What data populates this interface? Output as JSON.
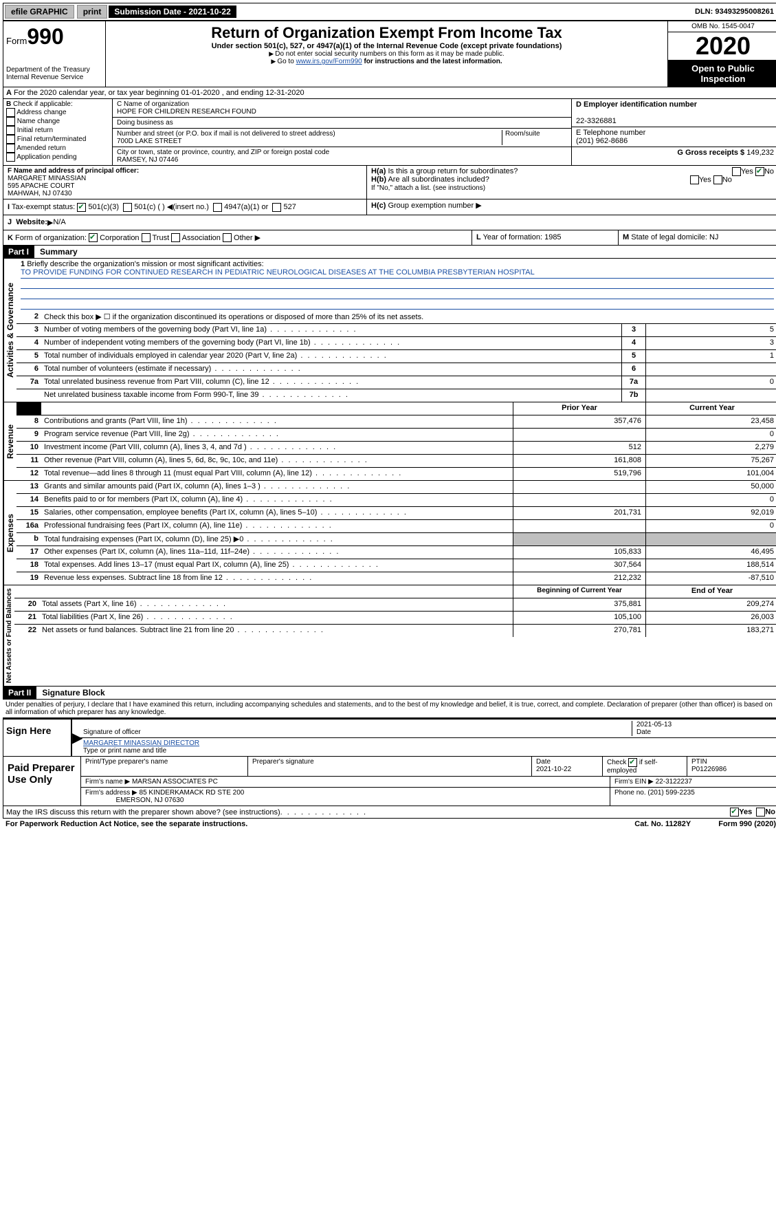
{
  "topbar": {
    "efile": "efile GRAPHIC",
    "print": "print",
    "subdate_label": "Submission Date - 2021-10-22",
    "dln": "DLN: 93493295008261"
  },
  "header": {
    "form_prefix": "Form",
    "form_num": "990",
    "dept": "Department of the Treasury",
    "irs": "Internal Revenue Service",
    "title": "Return of Organization Exempt From Income Tax",
    "sub": "Under section 501(c), 527, or 4947(a)(1) of the Internal Revenue Code (except private foundations)",
    "note1": "Do not enter social security numbers on this form as it may be made public.",
    "note2_pre": "Go to ",
    "note2_link": "www.irs.gov/Form990",
    "note2_post": " for instructions and the latest information.",
    "omb": "OMB No. 1545-0047",
    "year": "2020",
    "open": "Open to Public Inspection"
  },
  "a_line": "For the 2020 calendar year, or tax year beginning 01-01-2020   , and ending 12-31-2020",
  "b": {
    "title": "Check if applicable:",
    "items": [
      "Address change",
      "Name change",
      "Initial return",
      "Final return/terminated",
      "Amended return",
      "Application pending"
    ]
  },
  "c": {
    "name_label": "C Name of organization",
    "name": "HOPE FOR CHILDREN RESEARCH FOUND",
    "dba_label": "Doing business as",
    "addr_label": "Number and street (or P.O. box if mail is not delivered to street address)",
    "room_label": "Room/suite",
    "addr": "700D LAKE STREET",
    "city_label": "City or town, state or province, country, and ZIP or foreign postal code",
    "city": "RAMSEY, NJ  07446"
  },
  "d": {
    "ein_label": "D Employer identification number",
    "ein": "22-3326881",
    "e_label": "E Telephone number",
    "phone": "(201) 962-8686",
    "g_label": "G Gross receipts $",
    "gross": "149,232"
  },
  "f": {
    "label": "F  Name and address of principal officer:",
    "name": "MARGARET MINASSIAN",
    "addr1": "595 APACHE COURT",
    "addr2": "MAHWAH, NJ  07430"
  },
  "h": {
    "a_label": "Is this a group return for subordinates?",
    "b_label": "Are all subordinates included?",
    "c_label": "Group exemption number",
    "note": "\"If \"No,\" attach a list. (see instructions)\"",
    "yes": "Yes",
    "no": "No",
    "ha_no_checked": true
  },
  "i": {
    "label": "Tax-exempt status:",
    "o1": "501(c)(3)",
    "o2": "501(c) (  )",
    "o2_hint": "(insert no.)",
    "o3": "4947(a)(1) or",
    "o4": "527"
  },
  "j": {
    "label": "Website:",
    "val": "N/A"
  },
  "k": {
    "label": "Form of organization:",
    "opts": [
      "Corporation",
      "Trust",
      "Association",
      "Other"
    ],
    "checked": 0
  },
  "l": {
    "label": "Year of formation:",
    "val": "1985"
  },
  "m": {
    "label": "State of legal domicile:",
    "val": "NJ"
  },
  "part1": {
    "label": "Part I",
    "title": "Summary",
    "q1": "Briefly describe the organization's mission or most significant activities:",
    "mission": "TO PROVIDE FUNDING FOR CONTINUED RESEARCH IN PEDIATRIC NEUROLOGICAL DISEASES AT THE COLUMBIA PRESBYTERIAN HOSPITAL",
    "q2": "Check this box ▶ ☐  if the organization discontinued its operations or disposed of more than 25% of its net assets.",
    "gov_label": "Activities & Governance",
    "rev_label": "Revenue",
    "exp_label": "Expenses",
    "net_label": "Net Assets or Fund Balances",
    "prior": "Prior Year",
    "current": "Current Year",
    "beg": "Beginning of Current Year",
    "end": "End of Year",
    "rows_gov": [
      {
        "n": "3",
        "t": "Number of voting members of the governing body (Part VI, line 1a)",
        "box": "3",
        "v": "5"
      },
      {
        "n": "4",
        "t": "Number of independent voting members of the governing body (Part VI, line 1b)",
        "box": "4",
        "v": "3"
      },
      {
        "n": "5",
        "t": "Total number of individuals employed in calendar year 2020 (Part V, line 2a)",
        "box": "5",
        "v": "1"
      },
      {
        "n": "6",
        "t": "Total number of volunteers (estimate if necessary)",
        "box": "6",
        "v": ""
      },
      {
        "n": "7a",
        "t": "Total unrelated business revenue from Part VIII, column (C), line 12",
        "box": "7a",
        "v": "0"
      },
      {
        "n": "",
        "t": "Net unrelated business taxable income from Form 990-T, line 39",
        "box": "7b",
        "v": ""
      }
    ],
    "rows_rev": [
      {
        "n": "8",
        "t": "Contributions and grants (Part VIII, line 1h)",
        "p": "357,476",
        "c": "23,458"
      },
      {
        "n": "9",
        "t": "Program service revenue (Part VIII, line 2g)",
        "p": "",
        "c": "0"
      },
      {
        "n": "10",
        "t": "Investment income (Part VIII, column (A), lines 3, 4, and 7d )",
        "p": "512",
        "c": "2,279"
      },
      {
        "n": "11",
        "t": "Other revenue (Part VIII, column (A), lines 5, 6d, 8c, 9c, 10c, and 11e)",
        "p": "161,808",
        "c": "75,267"
      },
      {
        "n": "12",
        "t": "Total revenue—add lines 8 through 11 (must equal Part VIII, column (A), line 12)",
        "p": "519,796",
        "c": "101,004"
      }
    ],
    "rows_exp": [
      {
        "n": "13",
        "t": "Grants and similar amounts paid (Part IX, column (A), lines 1–3 )",
        "p": "",
        "c": "50,000"
      },
      {
        "n": "14",
        "t": "Benefits paid to or for members (Part IX, column (A), line 4)",
        "p": "",
        "c": "0"
      },
      {
        "n": "15",
        "t": "Salaries, other compensation, employee benefits (Part IX, column (A), lines 5–10)",
        "p": "201,731",
        "c": "92,019"
      },
      {
        "n": "16a",
        "t": "Professional fundraising fees (Part IX, column (A), line 11e)",
        "p": "",
        "c": "0"
      },
      {
        "n": "b",
        "t": "Total fundraising expenses (Part IX, column (D), line 25) ▶0",
        "p": "shade",
        "c": "shade"
      },
      {
        "n": "17",
        "t": "Other expenses (Part IX, column (A), lines 11a–11d, 11f–24e)",
        "p": "105,833",
        "c": "46,495"
      },
      {
        "n": "18",
        "t": "Total expenses. Add lines 13–17 (must equal Part IX, column (A), line 25)",
        "p": "307,564",
        "c": "188,514"
      },
      {
        "n": "19",
        "t": "Revenue less expenses. Subtract line 18 from line 12",
        "p": "212,232",
        "c": "-87,510"
      }
    ],
    "rows_net": [
      {
        "n": "20",
        "t": "Total assets (Part X, line 16)",
        "p": "375,881",
        "c": "209,274"
      },
      {
        "n": "21",
        "t": "Total liabilities (Part X, line 26)",
        "p": "105,100",
        "c": "26,003"
      },
      {
        "n": "22",
        "t": "Net assets or fund balances. Subtract line 21 from line 20",
        "p": "270,781",
        "c": "183,271"
      }
    ]
  },
  "part2": {
    "label": "Part II",
    "title": "Signature Block",
    "perjury": "Under penalties of perjury, I declare that I have examined this return, including accompanying schedules and statements, and to the best of my knowledge and belief, it is true, correct, and complete. Declaration of preparer (other than officer) is based on all information of which preparer has any knowledge.",
    "sign_label": "Sign Here",
    "sig_officer": "Signature of officer",
    "date_label": "Date",
    "date": "2021-05-13",
    "typed": "MARGARET MINASSIAN  DIRECTOR",
    "typed_label": "Type or print name and title",
    "paid_label": "Paid Preparer Use Only",
    "pp_name_label": "Print/Type preparer's name",
    "pp_sig_label": "Preparer's signature",
    "pp_date_label": "Date",
    "pp_date": "2021-10-22",
    "pp_check_label": "Check ☑ if self-employed",
    "pp_ptin_label": "PTIN",
    "pp_ptin": "P01226986",
    "firm_name_label": "Firm's name   ▶",
    "firm_name": "MARSAN ASSOCIATES PC",
    "firm_ein_label": "Firm's EIN ▶",
    "firm_ein": "22-3122237",
    "firm_addr_label": "Firm's address ▶",
    "firm_addr1": "85 KINDERKAMACK RD STE 200",
    "firm_addr2": "EMERSON, NJ  07630",
    "phone_label": "Phone no.",
    "phone": "(201) 599-2235",
    "discuss": "May the IRS discuss this return with the preparer shown above? (see instructions)",
    "yes": "Yes",
    "no": "No"
  },
  "footer": {
    "pra": "For Paperwork Reduction Act Notice, see the separate instructions.",
    "cat": "Cat. No. 11282Y",
    "form": "Form 990 (2020)"
  }
}
